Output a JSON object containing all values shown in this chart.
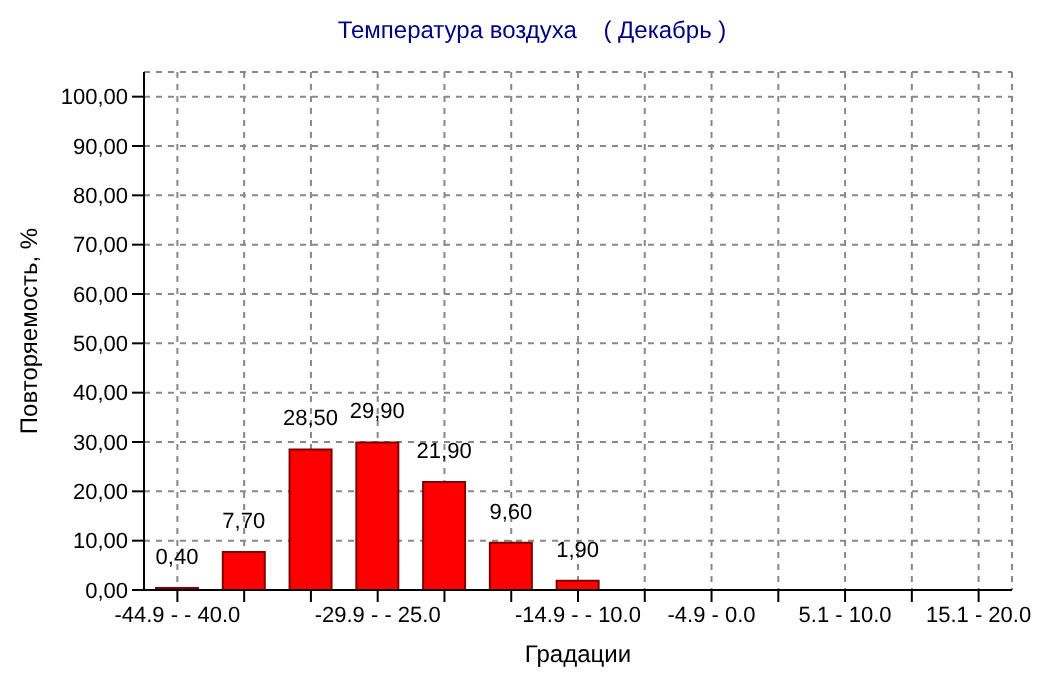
{
  "chart_data": {
    "type": "bar",
    "title": "Температура воздуха    ( Декабрь )",
    "xlabel": "Градации",
    "ylabel": "Повторяемость, %",
    "categories": [
      "-44.9 -  - 40.0",
      null,
      null,
      "-29.9 -  - 25.0",
      null,
      null,
      "-14.9 -  - 10.0",
      null,
      "-4.9 - 0.0",
      null,
      "5.1 - 10.0",
      null,
      "15.1 - 20.0"
    ],
    "values": [
      0.4,
      7.7,
      28.5,
      29.9,
      21.9,
      9.6,
      1.9,
      null,
      null,
      null,
      null,
      null,
      null
    ],
    "value_labels": [
      "0,40",
      "7,70",
      "28,50",
      "29,90",
      "21,90",
      "9,60",
      "1,90",
      null,
      null,
      null,
      null,
      null,
      null
    ],
    "color": "#ff0000",
    "ylim": [
      0,
      105
    ],
    "yticks": [
      {
        "value": 0,
        "label": "0,00"
      },
      {
        "value": 10,
        "label": "10,00"
      },
      {
        "value": 20,
        "label": "20,00"
      },
      {
        "value": 30,
        "label": "30,00"
      },
      {
        "value": 40,
        "label": "40,00"
      },
      {
        "value": 50,
        "label": "50,00"
      },
      {
        "value": 60,
        "label": "60,00"
      },
      {
        "value": 70,
        "label": "70,00"
      },
      {
        "value": 80,
        "label": "80,00"
      },
      {
        "value": 90,
        "label": "90,00"
      },
      {
        "value": 100,
        "label": "100,00"
      }
    ],
    "grid": true
  }
}
